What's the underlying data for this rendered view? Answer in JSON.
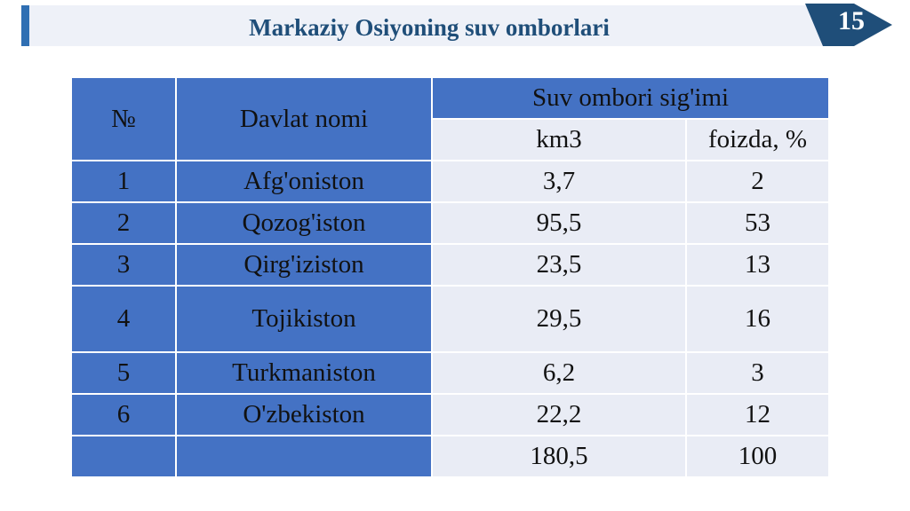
{
  "slide": {
    "title": "Markaziy Osiyoning suv omborlari",
    "page_number": "15"
  },
  "table": {
    "headers": {
      "number": "№",
      "country": "Davlat nomi",
      "capacity_group": "Suv ombori sig'imi",
      "km3": "km3",
      "percent": "foizda, %"
    },
    "rows": [
      {
        "num": "1",
        "country": "Afg'oniston",
        "km3": "3,7",
        "percent": "2"
      },
      {
        "num": "2",
        "country": "Qozog'iston",
        "km3": "95,5",
        "percent": "53"
      },
      {
        "num": "3",
        "country": "Qirg'iziston",
        "km3": "23,5",
        "percent": "13"
      },
      {
        "num": "4",
        "country": "Tojikiston",
        "km3": "29,5",
        "percent": "16"
      },
      {
        "num": "5",
        "country": "Turkmaniston",
        "km3": "6,2",
        "percent": "3"
      },
      {
        "num": "6",
        "country": "O'zbekiston",
        "km3": "22,2",
        "percent": "12"
      }
    ],
    "total": {
      "num": "",
      "country": "",
      "km3": "180,5",
      "percent": "100"
    }
  },
  "colors": {
    "header_blue": "#4472c4",
    "cell_light": "#e9ecf5",
    "title_text": "#1f4e79",
    "accent": "#2f6fb3",
    "badge": "#1f4e79"
  },
  "icons": {
    "page_badge": "chevron-badge-icon"
  }
}
